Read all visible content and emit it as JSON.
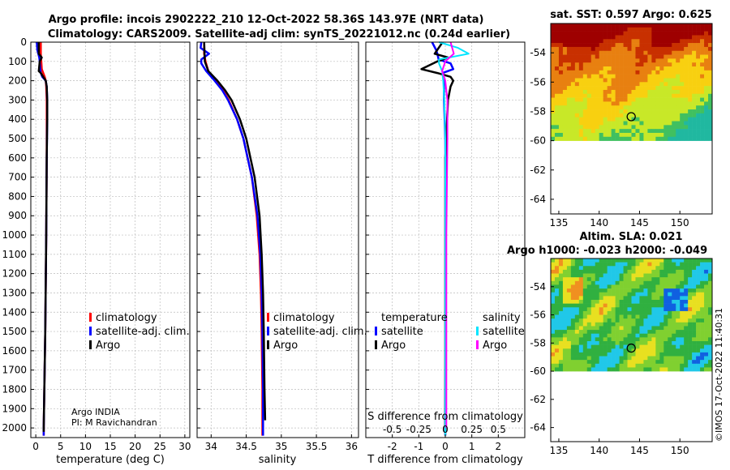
{
  "titles": {
    "line1": "Argo profile: incois 2902222_210 12-Oct-2022 58.36S 143.97E (NRT data)",
    "line2": "Climatology: CARS2009. Satellite-adj clim: synTS_20221012.nc (0.24d earlier)"
  },
  "watermark": "©IMOS 17-Oct-2022 11:40:31",
  "colors": {
    "climatology": "#ff0000",
    "satellite": "#0000ff",
    "argo": "#000000",
    "satellite_s": "#00e5ff",
    "argo_s": "#ff00ff",
    "grid": "#bcbcbc"
  },
  "chart_data": [
    {
      "type": "line",
      "name": "temperature-profile",
      "xlabel": "temperature (deg C)",
      "ylim": [
        2050,
        0
      ],
      "xlim": [
        -1,
        31
      ],
      "xticks": [
        0,
        5,
        10,
        15,
        20,
        25,
        30
      ],
      "xtick_labels": [
        "0",
        "5",
        "10",
        "15",
        "20",
        "25",
        "30"
      ],
      "yticks": [
        0,
        100,
        200,
        300,
        400,
        500,
        600,
        700,
        800,
        900,
        1000,
        1100,
        1200,
        1300,
        1400,
        1500,
        1600,
        1700,
        1800,
        1900,
        2000
      ],
      "ytick_labels": [
        "0",
        "100",
        "200",
        "300",
        "400",
        "500",
        "600",
        "700",
        "800",
        "900",
        "1000",
        "1100",
        "1200",
        "1300",
        "1400",
        "1500",
        "1600",
        "1700",
        "1800",
        "1900",
        "2000"
      ],
      "grid": true,
      "legend_position": "bottom-right",
      "legend": [
        "climatology",
        "satellite-adj. clim.",
        "Argo"
      ],
      "annotation": [
        "Argo INDIA",
        "PI: M Ravichandran"
      ],
      "series": [
        {
          "name": "climatology",
          "depth": [
            0,
            60,
            100,
            140,
            180,
            200,
            230,
            300,
            400,
            600,
            1000,
            1500,
            2000,
            2040
          ],
          "values": [
            1.0,
            1.0,
            1.1,
            1.2,
            1.8,
            2.0,
            2.1,
            2.2,
            2.2,
            2.2,
            2.1,
            1.9,
            1.6,
            1.6
          ]
        },
        {
          "name": "satellite-adj. clim.",
          "depth": [
            0,
            40,
            60,
            80,
            100,
            140,
            160,
            180,
            200,
            230,
            300,
            400,
            600,
            1000,
            1500,
            2000,
            2040
          ],
          "values": [
            0.2,
            0.3,
            0.5,
            0.7,
            0.8,
            0.9,
            1.0,
            1.3,
            2.0,
            2.2,
            2.3,
            2.3,
            2.2,
            2.1,
            1.9,
            1.6,
            1.6
          ]
        },
        {
          "name": "Argo",
          "depth": [
            0,
            60,
            80,
            100,
            150,
            160,
            180,
            200,
            230,
            300,
            400,
            600,
            1000,
            1500,
            2000,
            2020
          ],
          "values": [
            0.6,
            0.6,
            1.2,
            0.8,
            0.6,
            1.0,
            1.5,
            2.0,
            2.2,
            2.3,
            2.3,
            2.2,
            2.1,
            1.9,
            1.6,
            1.6
          ]
        }
      ]
    },
    {
      "type": "line",
      "name": "salinity-profile",
      "xlabel": "salinity",
      "ylim": [
        2050,
        0
      ],
      "xlim": [
        33.8,
        36.1
      ],
      "xticks": [
        34,
        34.5,
        35,
        35.5,
        36
      ],
      "xtick_labels": [
        "34",
        "34.5",
        "35",
        "35.5",
        "36"
      ],
      "grid": true,
      "legend_position": "bottom-right",
      "legend": [
        "climatology",
        "satellite-adj. clim.",
        "Argo"
      ],
      "series": [
        {
          "name": "climatology",
          "depth": [
            0,
            60,
            100,
            150,
            200,
            250,
            300,
            400,
            500,
            700,
            900,
            1100,
            1300,
            1500,
            1800,
            2000,
            2040
          ],
          "values": [
            33.9,
            33.9,
            33.92,
            33.96,
            34.07,
            34.17,
            34.25,
            34.37,
            34.46,
            34.58,
            34.65,
            34.69,
            34.71,
            34.72,
            34.73,
            34.73,
            34.73
          ]
        },
        {
          "name": "satellite-adj. clim.",
          "depth": [
            0,
            30,
            60,
            90,
            110,
            150,
            200,
            250,
            300,
            400,
            500,
            700,
            900,
            1100,
            1300,
            1500,
            1800,
            2000,
            2040
          ],
          "values": [
            33.86,
            33.85,
            33.97,
            33.86,
            33.86,
            33.93,
            34.05,
            34.16,
            34.24,
            34.37,
            34.46,
            34.58,
            34.66,
            34.7,
            34.72,
            34.73,
            34.74,
            34.74,
            34.74
          ]
        },
        {
          "name": "Argo",
          "depth": [
            0,
            100,
            150,
            200,
            250,
            300,
            400,
            500,
            700,
            900,
            1100,
            1300,
            1500,
            1800,
            1960
          ],
          "values": [
            33.9,
            33.91,
            33.96,
            34.09,
            34.2,
            34.29,
            34.41,
            34.5,
            34.62,
            34.69,
            34.72,
            34.74,
            34.75,
            34.76,
            34.77
          ]
        }
      ]
    },
    {
      "type": "line",
      "name": "difference-profile",
      "xlabel": "T difference from climatology",
      "xlabel_top": "S difference from climatology",
      "ylim": [
        2050,
        0
      ],
      "xlim": [
        -3,
        3
      ],
      "xticks": [
        -2,
        -1,
        0,
        1,
        2
      ],
      "xtick_labels": [
        "-2",
        "-1",
        "0",
        "1",
        "2"
      ],
      "top_ticks": [
        -0.5,
        -0.25,
        0,
        0.25,
        0.5
      ],
      "top_tick_labels": [
        "-0.5",
        "-0.25",
        "0",
        "0.25",
        "0.5"
      ],
      "grid": true,
      "legend_position": "bottom",
      "legend_left_title": "temperature",
      "legend_right_title": "salinity",
      "legend_left": [
        "satellite",
        "Argo"
      ],
      "legend_right": [
        "satellite",
        "Argo"
      ],
      "series": [
        {
          "name": "T satellite",
          "depth": [
            0,
            40,
            60,
            90,
            110,
            140,
            160,
            200,
            300,
            500,
            1000,
            2000,
            2040
          ],
          "values": [
            -0.5,
            -0.35,
            -0.3,
            -0.25,
            0.2,
            0.3,
            -0.1,
            -0.05,
            -0.05,
            0.0,
            0.02,
            0.0,
            0.0
          ]
        },
        {
          "name": "T Argo",
          "depth": [
            0,
            60,
            80,
            100,
            140,
            160,
            180,
            200,
            230,
            300,
            600,
            1000,
            2000,
            2020
          ],
          "values": [
            -0.1,
            -0.4,
            0.1,
            -0.3,
            -0.9,
            -0.3,
            0.2,
            0.3,
            0.2,
            0.1,
            0.0,
            0.0,
            0.0,
            0.0
          ]
        },
        {
          "name": "S satellite",
          "depth": [
            0,
            30,
            60,
            90,
            110,
            150,
            200,
            300,
            500,
            1000,
            2000,
            2040
          ],
          "values": [
            -0.06,
            0.12,
            0.22,
            -0.06,
            -0.06,
            -0.03,
            -0.02,
            -0.01,
            0.0,
            0.0,
            0.0,
            0.0
          ]
        },
        {
          "name": "S Argo",
          "depth": [
            0,
            60,
            100,
            150,
            200,
            300,
            500,
            1000,
            1500,
            2000
          ],
          "values": [
            0.05,
            0.08,
            0.0,
            -0.03,
            0.0,
            0.02,
            0.02,
            0.01,
            0.01,
            0.01
          ]
        }
      ]
    },
    {
      "type": "heatmap",
      "name": "sst-map",
      "title": "sat. SST: 0.597 Argo: 0.625",
      "xlim": [
        134,
        154
      ],
      "ylim": [
        -65,
        -52
      ],
      "data_ylim": [
        -60,
        -52
      ],
      "xticks": [
        135,
        140,
        145,
        150
      ],
      "xtick_labels": [
        "135",
        "140",
        "145",
        "150"
      ],
      "yticks": [
        -54,
        -56,
        -58,
        -60,
        -62,
        -64
      ],
      "ytick_labels": [
        "-54",
        "-56",
        "-58",
        "-60",
        "-62",
        "-64"
      ],
      "marker": {
        "lon": 143.97,
        "lat": -58.36
      },
      "colors": [
        "#9e0000",
        "#c83000",
        "#e88010",
        "#f8d010",
        "#c8e828",
        "#40c060",
        "#20b8a0"
      ]
    },
    {
      "type": "heatmap",
      "name": "sla-map",
      "title": "Altim. SLA: 0.021",
      "subtitle": "Argo h1000: -0.023 h2000: -0.049",
      "xlim": [
        134,
        154
      ],
      "ylim": [
        -65,
        -52
      ],
      "data_ylim": [
        -60,
        -52
      ],
      "xticks": [
        135,
        140,
        145,
        150
      ],
      "xtick_labels": [
        "135",
        "140",
        "145",
        "150"
      ],
      "yticks": [
        -54,
        -56,
        -58,
        -60,
        -62,
        -64
      ],
      "ytick_labels": [
        "-54",
        "-56",
        "-58",
        "-60",
        "-62",
        "-64"
      ],
      "marker": {
        "lon": 143.97,
        "lat": -58.36
      },
      "colors": [
        "#1060e0",
        "#20c8e8",
        "#30b040",
        "#80d030",
        "#e8e020",
        "#f09020",
        "#d02010"
      ]
    }
  ]
}
